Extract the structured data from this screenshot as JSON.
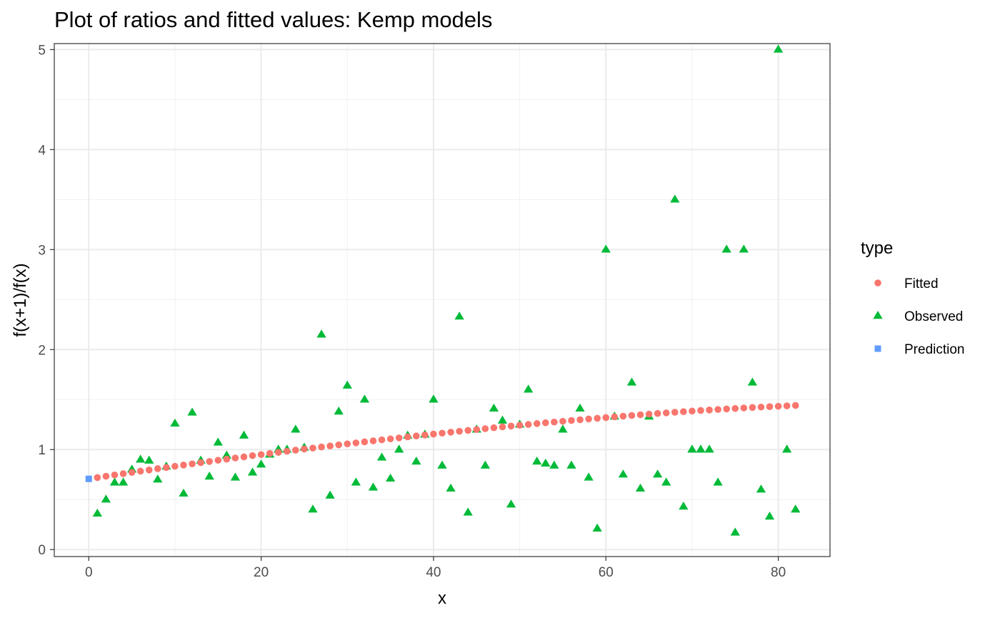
{
  "chart_data": {
    "type": "scatter",
    "title": "Plot of ratios and fitted values: Kemp models",
    "xlabel": "x",
    "ylabel": "f(x+1)/f(x)",
    "xlim": [
      -4,
      86
    ],
    "ylim": [
      -0.07,
      5.06
    ],
    "x_ticks": [
      0,
      20,
      40,
      60,
      80
    ],
    "y_ticks": [
      0,
      1,
      2,
      3,
      4,
      5
    ],
    "x_tick_labels": [
      "0",
      "20",
      "40",
      "60",
      "80"
    ],
    "y_tick_labels": [
      "0",
      "1",
      "2",
      "3",
      "4",
      "5"
    ],
    "grid": true,
    "legend": {
      "title": "type",
      "position": "right",
      "entries": [
        {
          "label": "Fitted",
          "color": "#F8766D",
          "shape": "circle"
        },
        {
          "label": "Observed",
          "color": "#00BA38",
          "shape": "triangle"
        },
        {
          "label": "Prediction",
          "color": "#619CFF",
          "shape": "square"
        }
      ]
    },
    "series": [
      {
        "name": "Fitted",
        "color": "#F8766D",
        "shape": "circle",
        "x": [
          1,
          2,
          3,
          4,
          5,
          6,
          7,
          8,
          9,
          10,
          11,
          12,
          13,
          14,
          15,
          16,
          17,
          18,
          19,
          20,
          21,
          22,
          23,
          24,
          25,
          26,
          27,
          28,
          29,
          30,
          31,
          32,
          33,
          34,
          35,
          36,
          37,
          38,
          39,
          40,
          41,
          42,
          43,
          44,
          45,
          46,
          47,
          48,
          49,
          50,
          51,
          52,
          53,
          54,
          55,
          56,
          57,
          58,
          59,
          60,
          61,
          62,
          63,
          64,
          65,
          66,
          67,
          68,
          69,
          70,
          71,
          72,
          73,
          74,
          75,
          76,
          77,
          78,
          79,
          80,
          81,
          82
        ],
        "y": [
          0.72,
          0.733,
          0.746,
          0.759,
          0.771,
          0.784,
          0.796,
          0.809,
          0.821,
          0.833,
          0.845,
          0.857,
          0.869,
          0.881,
          0.893,
          0.904,
          0.916,
          0.927,
          0.939,
          0.95,
          0.961,
          0.972,
          0.983,
          0.994,
          1.005,
          1.015,
          1.026,
          1.036,
          1.047,
          1.057,
          1.067,
          1.077,
          1.087,
          1.097,
          1.107,
          1.117,
          1.127,
          1.136,
          1.146,
          1.155,
          1.164,
          1.174,
          1.183,
          1.192,
          1.2,
          1.209,
          1.218,
          1.227,
          1.235,
          1.243,
          1.251,
          1.26,
          1.268,
          1.275,
          1.283,
          1.291,
          1.298,
          1.306,
          1.313,
          1.32,
          1.327,
          1.334,
          1.341,
          1.348,
          1.354,
          1.361,
          1.367,
          1.373,
          1.379,
          1.385,
          1.391,
          1.396,
          1.401,
          1.406,
          1.411,
          1.416,
          1.421,
          1.425,
          1.429,
          1.433,
          1.437,
          1.441
        ]
      },
      {
        "name": "Observed",
        "color": "#00BA38",
        "shape": "triangle",
        "x": [
          1,
          2,
          3,
          4,
          5,
          6,
          7,
          8,
          9,
          10,
          11,
          12,
          13,
          14,
          15,
          16,
          17,
          18,
          19,
          20,
          21,
          22,
          23,
          24,
          25,
          26,
          27,
          28,
          29,
          30,
          31,
          32,
          33,
          34,
          35,
          36,
          37,
          38,
          39,
          40,
          41,
          42,
          43,
          44,
          45,
          46,
          47,
          48,
          49,
          50,
          51,
          52,
          53,
          54,
          55,
          56,
          57,
          58,
          59,
          60,
          61,
          62,
          63,
          64,
          65,
          66,
          67,
          68,
          69,
          70,
          71,
          72,
          73,
          74,
          75,
          76,
          77,
          78,
          79,
          80,
          81,
          82
        ],
        "y": [
          0.36,
          0.5,
          0.67,
          0.67,
          0.8,
          0.9,
          0.89,
          0.7,
          0.83,
          1.26,
          0.56,
          1.37,
          0.89,
          0.73,
          1.07,
          0.94,
          0.72,
          1.14,
          0.77,
          0.85,
          0.95,
          1.0,
          1.0,
          1.2,
          1.02,
          0.4,
          2.15,
          0.54,
          1.38,
          1.64,
          0.67,
          1.5,
          0.62,
          0.92,
          0.71,
          1.0,
          1.14,
          0.88,
          1.15,
          1.5,
          0.84,
          0.61,
          2.33,
          0.37,
          1.2,
          0.84,
          1.41,
          1.29,
          0.45,
          1.25,
          1.6,
          0.88,
          0.86,
          0.84,
          1.2,
          0.84,
          1.41,
          0.72,
          0.21,
          3.0,
          1.33,
          0.75,
          1.67,
          0.61,
          1.33,
          0.75,
          0.67,
          3.5,
          0.43,
          1.0,
          1.0,
          1.0,
          0.67,
          3.0,
          0.17,
          3.0,
          1.67,
          0.6,
          0.33,
          5.0,
          1.0,
          0.4
        ]
      },
      {
        "name": "Prediction",
        "color": "#619CFF",
        "shape": "square",
        "x": [
          0
        ],
        "y": [
          0.707
        ]
      }
    ]
  }
}
